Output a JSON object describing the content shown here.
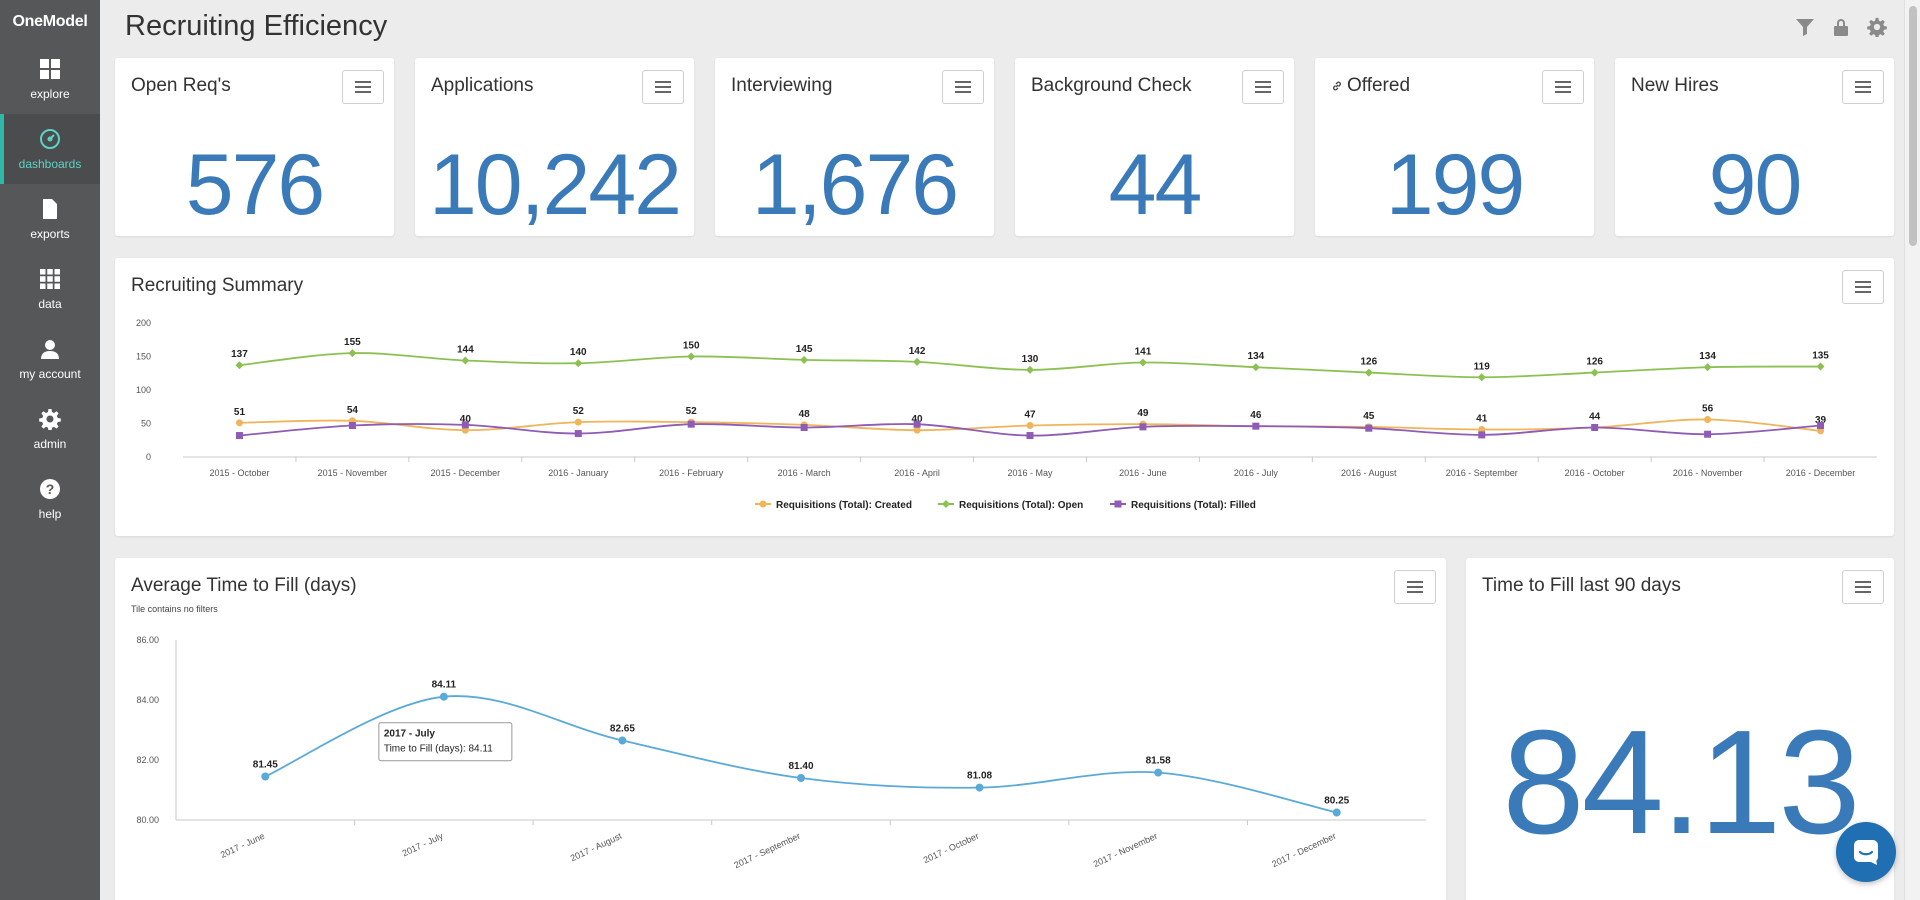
{
  "app": {
    "logo": "OneModel",
    "title": "Recruiting Efficiency"
  },
  "sidebar": {
    "items": [
      {
        "label": "explore",
        "icon": "grid-icon"
      },
      {
        "label": "dashboards",
        "icon": "dashboard-gauge-icon",
        "active": true
      },
      {
        "label": "exports",
        "icon": "file-icon"
      },
      {
        "label": "data",
        "icon": "data-grid-icon"
      },
      {
        "label": "my account",
        "icon": "user-icon"
      },
      {
        "label": "admin",
        "icon": "gear-icon"
      },
      {
        "label": "help",
        "icon": "help-icon"
      }
    ]
  },
  "header": {
    "icons": [
      "filter-icon",
      "lock-icon",
      "gear-icon"
    ]
  },
  "kpis": [
    {
      "title": "Open Req's",
      "value": "576"
    },
    {
      "title": "Applications",
      "value": "10,242"
    },
    {
      "title": "Interviewing",
      "value": "1,676"
    },
    {
      "title": "Background Check",
      "value": "44"
    },
    {
      "title": "Offered",
      "value": "199",
      "icon": "link-icon"
    },
    {
      "title": "New Hires",
      "value": "90"
    }
  ],
  "colors": {
    "accent": "#3a7ab8",
    "sidebar": "#555759",
    "active": "#5fd3c6",
    "created": "#f0b45a",
    "open": "#8cc152",
    "filled": "#8e5bb5",
    "line": "#5aaad8"
  },
  "summary": {
    "title": "Recruiting Summary",
    "chart_data": {
      "type": "line",
      "categories": [
        "2015 - October",
        "2015 - November",
        "2015 - December",
        "2016 - January",
        "2016 - February",
        "2016 - March",
        "2016 - April",
        "2016 - May",
        "2016 - June",
        "2016 - July",
        "2016 - August",
        "2016 - September",
        "2016 - October",
        "2016 - November",
        "2016 - December"
      ],
      "series": [
        {
          "name": "Requisitions (Total): Created",
          "color": "#f0b45a",
          "marker": "circle",
          "values": [
            51,
            54,
            40,
            52,
            52,
            48,
            40,
            47,
            49,
            46,
            45,
            41,
            44,
            56,
            39
          ]
        },
        {
          "name": "Requisitions (Total): Open",
          "color": "#8cc152",
          "marker": "diamond",
          "values": [
            137,
            155,
            144,
            140,
            150,
            145,
            142,
            130,
            141,
            134,
            126,
            119,
            126,
            134,
            135
          ]
        },
        {
          "name": "Requisitions (Total): Filled",
          "color": "#8e5bb5",
          "marker": "square",
          "values": [
            32,
            47,
            48,
            35,
            49,
            44,
            49,
            32,
            45,
            46,
            43,
            33,
            44,
            34,
            47
          ]
        }
      ],
      "labeled_series": [
        0,
        1
      ],
      "ylim": [
        0,
        200
      ],
      "yticks": [
        0,
        50,
        100,
        150,
        200
      ],
      "legend": "bottom",
      "grid": false
    }
  },
  "ttf": {
    "title": "Average Time to Fill (days)",
    "note": "Tile contains no filters",
    "tooltip": {
      "title": "2017 - July",
      "body": "Time to Fill (days): 84.11"
    },
    "chart_data": {
      "type": "line",
      "categories": [
        "2017 - June",
        "2017 - July",
        "2017 - August",
        "2017 - September",
        "2017 - October",
        "2017 - November",
        "2017 - December"
      ],
      "series": [
        {
          "name": "Time to Fill (days)",
          "color": "#5aaad8",
          "values": [
            81.45,
            84.11,
            82.65,
            81.4,
            81.08,
            81.58,
            80.25
          ],
          "labels": [
            "81.45",
            "84.11",
            "82.65",
            "81.40",
            "81.08",
            "81.58",
            "80.25"
          ]
        }
      ],
      "ylim": [
        80,
        86
      ],
      "yticks": [
        "80.00",
        "82.00",
        "84.00",
        "86.00"
      ],
      "grid": false
    }
  },
  "ttf90": {
    "title": "Time to Fill last 90 days",
    "value": "84.13"
  }
}
